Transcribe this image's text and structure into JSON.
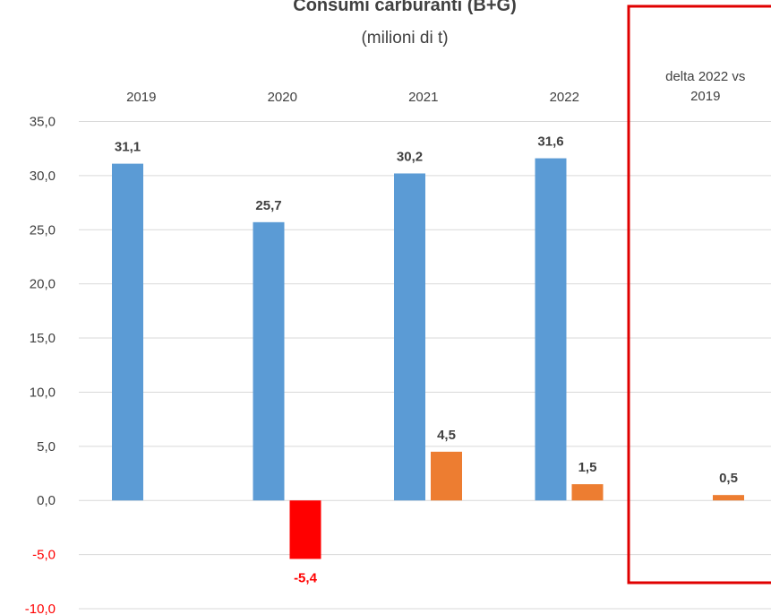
{
  "chart_data": {
    "type": "bar",
    "title": "Consumi carburanti (B+G)",
    "subtitle": "(milioni di t)",
    "categories": [
      "2019",
      "2020",
      "2021",
      "2022",
      "delta 2022  vs\n2019"
    ],
    "series": [
      {
        "values": [
          31.1,
          25.7,
          30.2,
          31.6,
          null
        ],
        "labels": [
          "31,1",
          "25,7",
          "30,2",
          "31,6",
          ""
        ]
      },
      {
        "values": [
          null,
          -5.4,
          4.5,
          1.5,
          0.5
        ],
        "labels": [
          "",
          "-5,4",
          "4,5",
          "1,5",
          "0,5"
        ]
      }
    ],
    "ylim": [
      -10,
      35
    ],
    "yticks": [
      35,
      30,
      25,
      20,
      15,
      10,
      5,
      0,
      -5,
      -10
    ],
    "ytick_labels": [
      "35,0",
      "30,0",
      "25,0",
      "20,0",
      "15,0",
      "10,0",
      "5,0",
      "0,0",
      "-5,0",
      "-10,0"
    ],
    "xlabel": "",
    "ylabel": "",
    "grid": true,
    "highlighted_category": "delta 2022  vs\n2019"
  },
  "colors": {
    "series_1": "#5b9bd5",
    "series_2_positive": "#ed7d31",
    "series_2_negative": "#ff0000",
    "negative_label": "#ff0000",
    "highlight_box": "#e00000",
    "grid": "#d9d9d9",
    "text": "#404040"
  }
}
